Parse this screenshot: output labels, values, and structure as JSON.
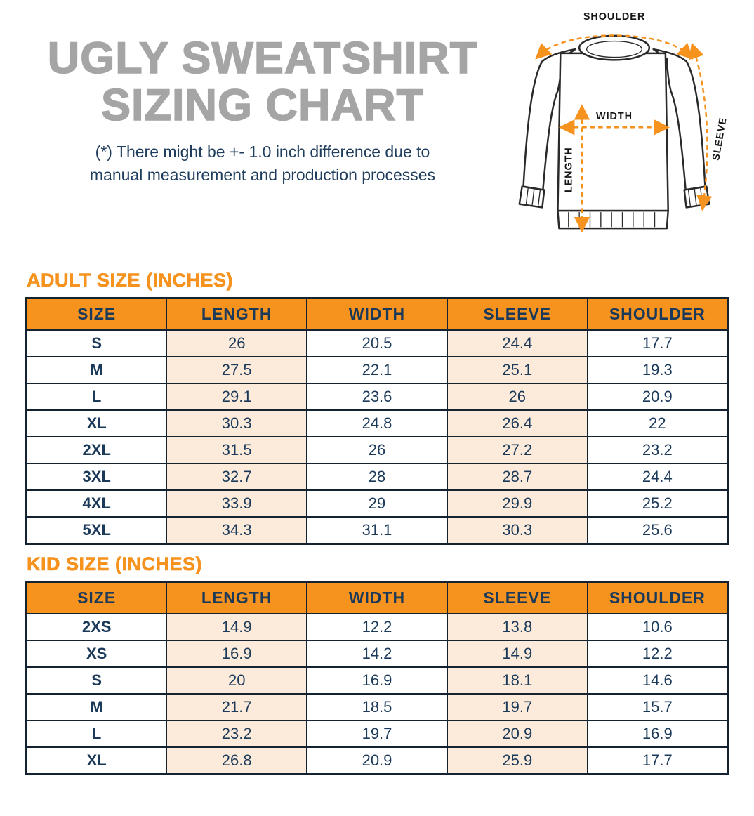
{
  "page": {
    "title_line1": "UGLY SWEATSHIRT",
    "title_line2": "SIZING CHART",
    "disclaimer_line1": "(*) There might be +- 1.0 inch difference due to",
    "disclaimer_line2": "manual measurement and production processes"
  },
  "diagram": {
    "shoulder_label": "SHOULDER",
    "width_label": "WIDTH",
    "length_label": "LENGTH",
    "sleeve_label": "SLEEVE"
  },
  "colors": {
    "accent_orange": "#F6921E",
    "navy_text": "#1B3A5A",
    "peach_cell": "#FCEBDB",
    "title_gray": "#A5A5A5",
    "border_dark": "#15222F"
  },
  "chart_data": [
    {
      "type": "table",
      "title": "ADULT SIZE (INCHES)",
      "columns": [
        "SIZE",
        "LENGTH",
        "WIDTH",
        "SLEEVE",
        "SHOULDER"
      ],
      "rows": [
        [
          "S",
          26,
          20.5,
          24.4,
          17.7
        ],
        [
          "M",
          27.5,
          22.1,
          25.1,
          19.3
        ],
        [
          "L",
          29.1,
          23.6,
          26,
          20.9
        ],
        [
          "XL",
          30.3,
          24.8,
          26.4,
          22
        ],
        [
          "2XL",
          31.5,
          26,
          27.2,
          23.2
        ],
        [
          "3XL",
          32.7,
          28,
          28.7,
          24.4
        ],
        [
          "4XL",
          33.9,
          29,
          29.9,
          25.2
        ],
        [
          "5XL",
          34.3,
          31.1,
          30.3,
          25.6
        ]
      ]
    },
    {
      "type": "table",
      "title": "KID SIZE (INCHES)",
      "columns": [
        "SIZE",
        "LENGTH",
        "WIDTH",
        "SLEEVE",
        "SHOULDER"
      ],
      "rows": [
        [
          "2XS",
          14.9,
          12.2,
          13.8,
          10.6
        ],
        [
          "XS",
          16.9,
          14.2,
          14.9,
          12.2
        ],
        [
          "S",
          20,
          16.9,
          18.1,
          14.6
        ],
        [
          "M",
          21.7,
          18.5,
          19.7,
          15.7
        ],
        [
          "L",
          23.2,
          19.7,
          20.9,
          16.9
        ],
        [
          "XL",
          26.8,
          20.9,
          25.9,
          17.7
        ]
      ]
    }
  ]
}
